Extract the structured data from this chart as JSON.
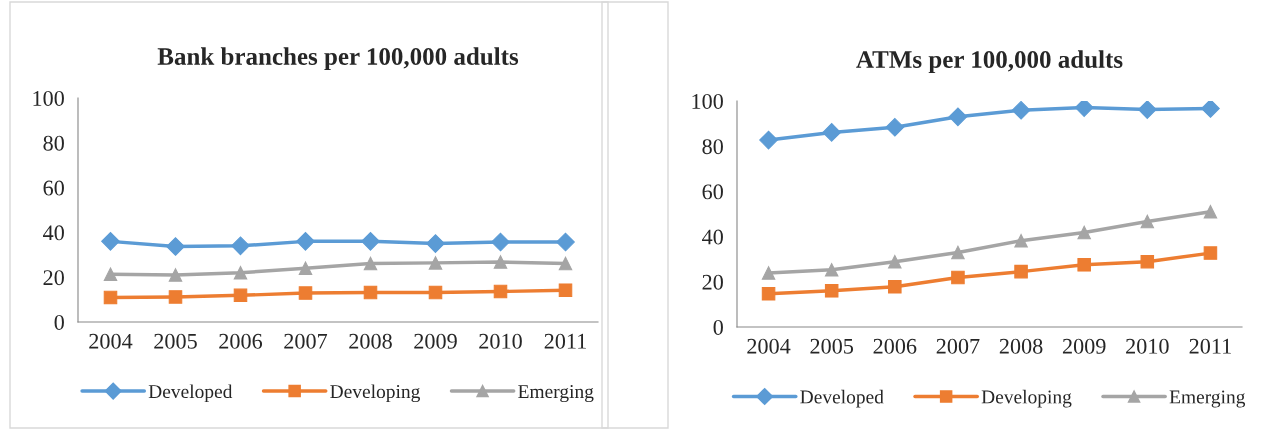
{
  "chart_data": [
    {
      "type": "line",
      "title": "Bank branches per 100,000 adults",
      "categories": [
        "2004",
        "2005",
        "2006",
        "2007",
        "2008",
        "2009",
        "2010",
        "2011"
      ],
      "ylim": [
        0,
        100
      ],
      "yticks": [
        0,
        20,
        40,
        60,
        80,
        100
      ],
      "legend": "bottom",
      "grid": false,
      "line_style": "solid",
      "series": [
        {
          "name": "Developed",
          "color": "#5b9bd5",
          "marker": "diamond",
          "values": [
            36.0,
            33.7,
            34.0,
            36.0,
            36.0,
            35.0,
            35.7,
            35.7
          ]
        },
        {
          "name": "Developing",
          "color": "#ed7d31",
          "marker": "square",
          "values": [
            10.9,
            11.2,
            11.9,
            12.9,
            13.2,
            13.2,
            13.6,
            14.2
          ]
        },
        {
          "name": "Emerging",
          "color": "#a5a5a5",
          "marker": "triangle",
          "values": [
            21.3,
            21.0,
            22.0,
            24.0,
            26.1,
            26.4,
            26.8,
            26.1
          ]
        }
      ]
    },
    {
      "type": "line",
      "title": "ATMs per 100,000 adults",
      "categories": [
        "2004",
        "2005",
        "2006",
        "2007",
        "2008",
        "2009",
        "2010",
        "2011"
      ],
      "ylim": [
        0,
        100
      ],
      "yticks": [
        0,
        20,
        40,
        60,
        80,
        100
      ],
      "legend": "bottom",
      "grid": false,
      "line_style": "solid",
      "series": [
        {
          "name": "Developed",
          "color": "#5b9bd5",
          "marker": "diamond",
          "values": [
            82.7,
            86.1,
            88.4,
            93.0,
            95.9,
            97.1,
            96.2,
            96.7
          ]
        },
        {
          "name": "Developing",
          "color": "#ed7d31",
          "marker": "square",
          "values": [
            14.7,
            16.0,
            17.8,
            21.9,
            24.5,
            27.5,
            28.9,
            32.7
          ]
        },
        {
          "name": "Emerging",
          "color": "#a5a5a5",
          "marker": "triangle",
          "values": [
            23.9,
            25.3,
            28.9,
            33.0,
            38.2,
            41.8,
            46.7,
            51.0
          ]
        }
      ]
    }
  ]
}
